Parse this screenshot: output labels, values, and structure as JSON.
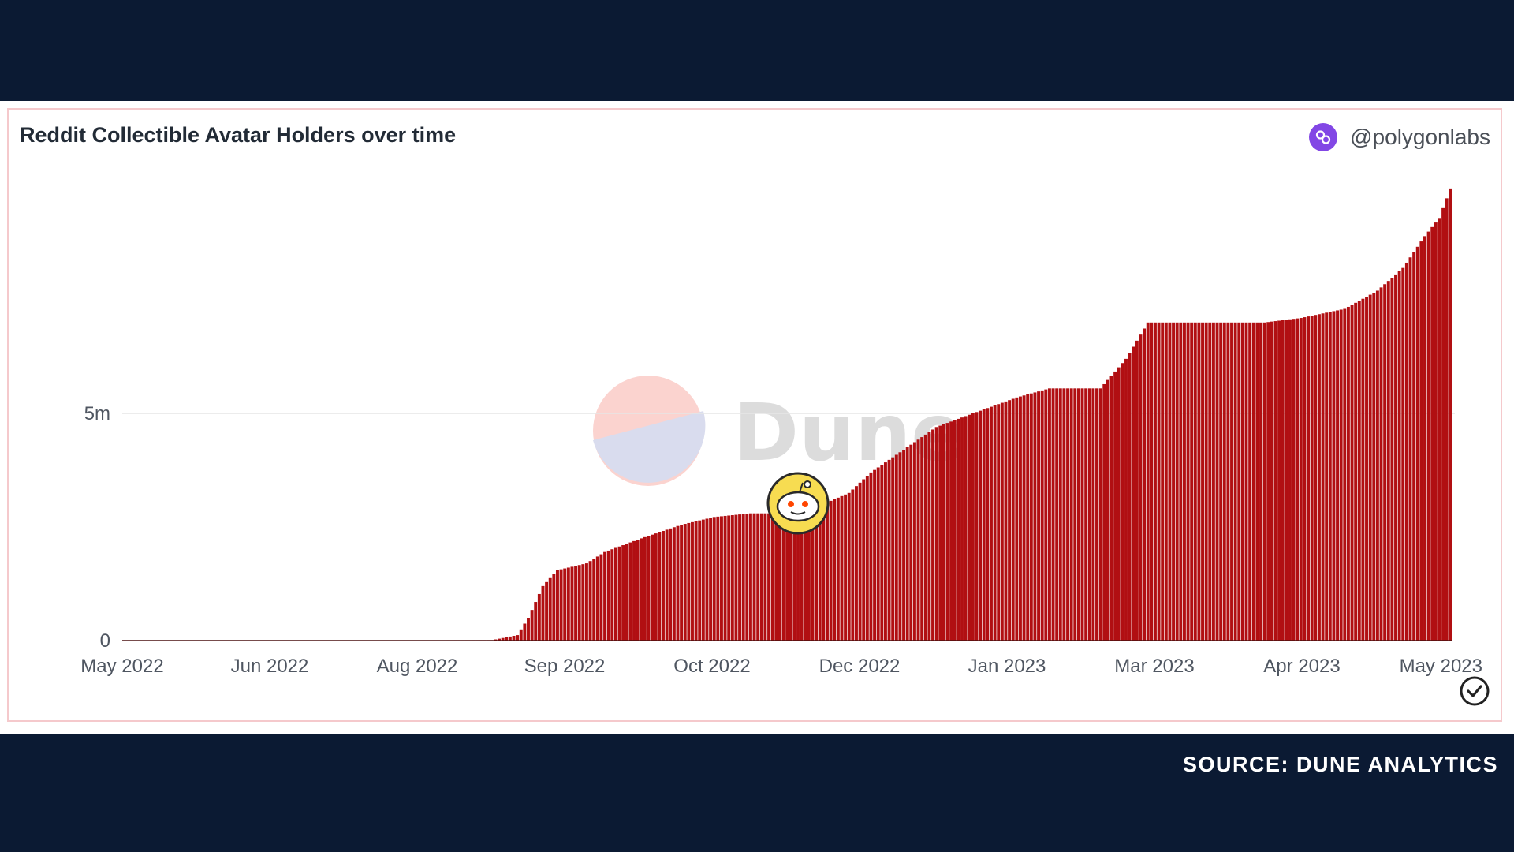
{
  "header": {
    "title": "Reddit Collectible Avatar Holders over time",
    "owner": "@polygonlabs"
  },
  "watermark": "Dune",
  "footer": {
    "source": "SOURCE: DUNE ANALYTICS"
  },
  "colors": {
    "bar": "#b10f12",
    "background": "#0b1a33",
    "owner_icon": "#8247e5"
  },
  "icons": [
    "polygon-icon",
    "reddit-snoo-icon",
    "check-circle-icon"
  ],
  "chart_data": {
    "type": "bar",
    "title": "Reddit Collectible Avatar Holders over time",
    "xlabel": "",
    "ylabel": "",
    "ylim": [
      0,
      10000000
    ],
    "yticks": [
      {
        "value": 0,
        "label": "0"
      },
      {
        "value": 5000000,
        "label": "5m"
      }
    ],
    "xticks": [
      "May 2022",
      "Jun 2022",
      "Aug 2022",
      "Sep 2022",
      "Oct 2022",
      "Dec 2022",
      "Jan 2023",
      "Mar 2023",
      "Apr 2023",
      "May 2023"
    ],
    "x_range": [
      "2022-05-01",
      "2023-05-01"
    ],
    "grid": true,
    "series": [
      {
        "values_per_day": true,
        "points": [
          [
            "2022-05-01",
            0
          ],
          [
            "2022-08-10",
            10000
          ],
          [
            "2022-08-17",
            120000
          ],
          [
            "2022-08-20",
            500000
          ],
          [
            "2022-08-24",
            1200000
          ],
          [
            "2022-08-28",
            1550000
          ],
          [
            "2022-09-05",
            1700000
          ],
          [
            "2022-09-10",
            1950000
          ],
          [
            "2022-09-20",
            2250000
          ],
          [
            "2022-10-01",
            2550000
          ],
          [
            "2022-10-10",
            2720000
          ],
          [
            "2022-10-20",
            2800000
          ],
          [
            "2022-11-01",
            2800000
          ],
          [
            "2022-11-06",
            2900000
          ],
          [
            "2022-11-16",
            3250000
          ],
          [
            "2022-11-22",
            3700000
          ],
          [
            "2022-12-01",
            4200000
          ],
          [
            "2022-12-10",
            4700000
          ],
          [
            "2022-12-20",
            5000000
          ],
          [
            "2023-01-01",
            5350000
          ],
          [
            "2023-01-10",
            5550000
          ],
          [
            "2023-01-24",
            5550000
          ],
          [
            "2023-01-31",
            6200000
          ],
          [
            "2023-02-06",
            7000000
          ],
          [
            "2023-03-10",
            7000000
          ],
          [
            "2023-03-20",
            7100000
          ],
          [
            "2023-04-01",
            7300000
          ],
          [
            "2023-04-10",
            7700000
          ],
          [
            "2023-04-17",
            8200000
          ],
          [
            "2023-04-23",
            8900000
          ],
          [
            "2023-04-27",
            9300000
          ],
          [
            "2023-04-30",
            9950000
          ]
        ]
      }
    ]
  }
}
